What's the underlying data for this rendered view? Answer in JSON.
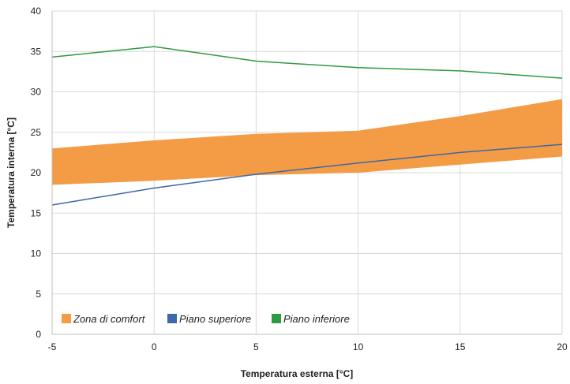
{
  "chart_data": {
    "type": "line",
    "title": "",
    "xlabel": "Temperatura esterna [°C]",
    "ylabel": "Temperatura interna [°C]",
    "x": [
      -5,
      0,
      5,
      10,
      15,
      20
    ],
    "xlim": [
      -5,
      20
    ],
    "ylim": [
      0,
      40
    ],
    "xticks": [
      "-5",
      "0",
      "5",
      "10",
      "15",
      "20"
    ],
    "yticks": [
      "0",
      "5",
      "10",
      "15",
      "20",
      "25",
      "30",
      "35",
      "40"
    ],
    "grid": true,
    "legend_position": "bottom-left",
    "band": {
      "name": "Zona di comfort",
      "color": "#f39c45",
      "lower": [
        18.5,
        19.0,
        19.7,
        20.0,
        21.0,
        22.0
      ],
      "upper": [
        23.0,
        24.0,
        24.8,
        25.2,
        27.0,
        29.1
      ]
    },
    "series": [
      {
        "name": "Piano superiore",
        "color": "#3d67a8",
        "values": [
          16.0,
          18.1,
          19.8,
          21.2,
          22.5,
          23.5
        ]
      },
      {
        "name": "Piano inferiore",
        "color": "#2e9a44",
        "values": [
          34.3,
          35.6,
          33.8,
          33.0,
          32.6,
          31.7
        ]
      }
    ]
  }
}
